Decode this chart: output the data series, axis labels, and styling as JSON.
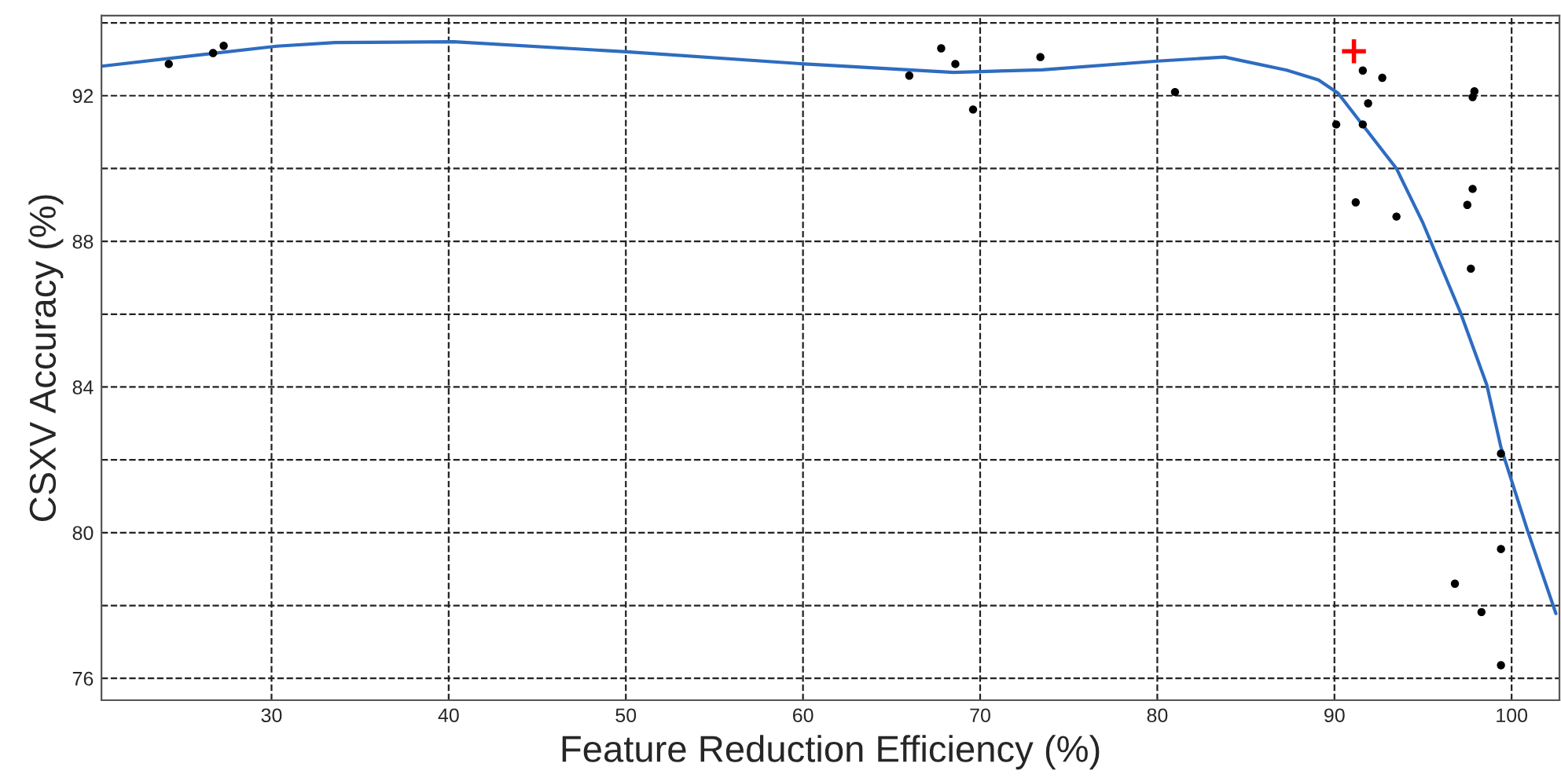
{
  "chart_data": {
    "type": "scatter",
    "xlabel": "Feature Reduction Efficiency (%)",
    "ylabel": "CSXV Accuracy (%)",
    "xlim": [
      20.4,
      102.7
    ],
    "ylim": [
      75.4,
      94.2
    ],
    "xticks": [
      30,
      40,
      50,
      60,
      70,
      80,
      90,
      100
    ],
    "yticks": [
      76,
      {
        "value": 78,
        "label": null
      },
      80,
      {
        "value": 82,
        "label": null
      },
      84,
      {
        "value": 86,
        "label": null
      },
      88,
      {
        "value": 90,
        "label": null
      },
      92,
      {
        "value": 94,
        "label": null
      }
    ],
    "grid": true,
    "series": [
      {
        "type": "line",
        "marker": "none",
        "color": "#2e6cc0",
        "x": [
          20.4,
          30.3,
          33.6,
          40.3,
          50.2,
          60.1,
          68.5,
          73.5,
          80.0,
          83.8,
          87.3,
          89.1,
          90.2,
          93.5,
          95.0,
          97.1,
          98.6,
          99.4,
          100.9,
          102.5
        ],
        "values": [
          92.81,
          93.36,
          93.46,
          93.48,
          93.2,
          92.87,
          92.64,
          92.71,
          92.95,
          93.06,
          92.7,
          92.43,
          92.07,
          90.0,
          88.5,
          86.06,
          84.06,
          82.34,
          80.06,
          77.78
        ]
      },
      {
        "marker": "circle",
        "color": "#000000",
        "x": [
          24.2,
          26.7,
          27.3,
          66.0,
          67.8,
          68.6,
          69.6,
          73.4,
          81.0,
          91.6,
          92.7,
          97.9,
          97.8,
          91.9,
          90.1,
          91.6,
          97.8,
          97.5,
          91.2,
          93.5,
          97.7,
          99.4,
          99.4,
          96.8,
          98.3,
          99.4
        ],
        "values": [
          92.87,
          93.17,
          93.37,
          92.55,
          93.3,
          92.87,
          91.62,
          93.06,
          92.1,
          92.69,
          92.49,
          92.12,
          91.96,
          91.79,
          91.21,
          91.21,
          89.44,
          89.0,
          89.07,
          88.68,
          87.25,
          82.17,
          79.55,
          78.6,
          77.82,
          76.36
        ]
      },
      {
        "marker": "cross",
        "color": "#ff0000",
        "x": [
          91.1
        ],
        "values": [
          93.22
        ]
      }
    ]
  }
}
